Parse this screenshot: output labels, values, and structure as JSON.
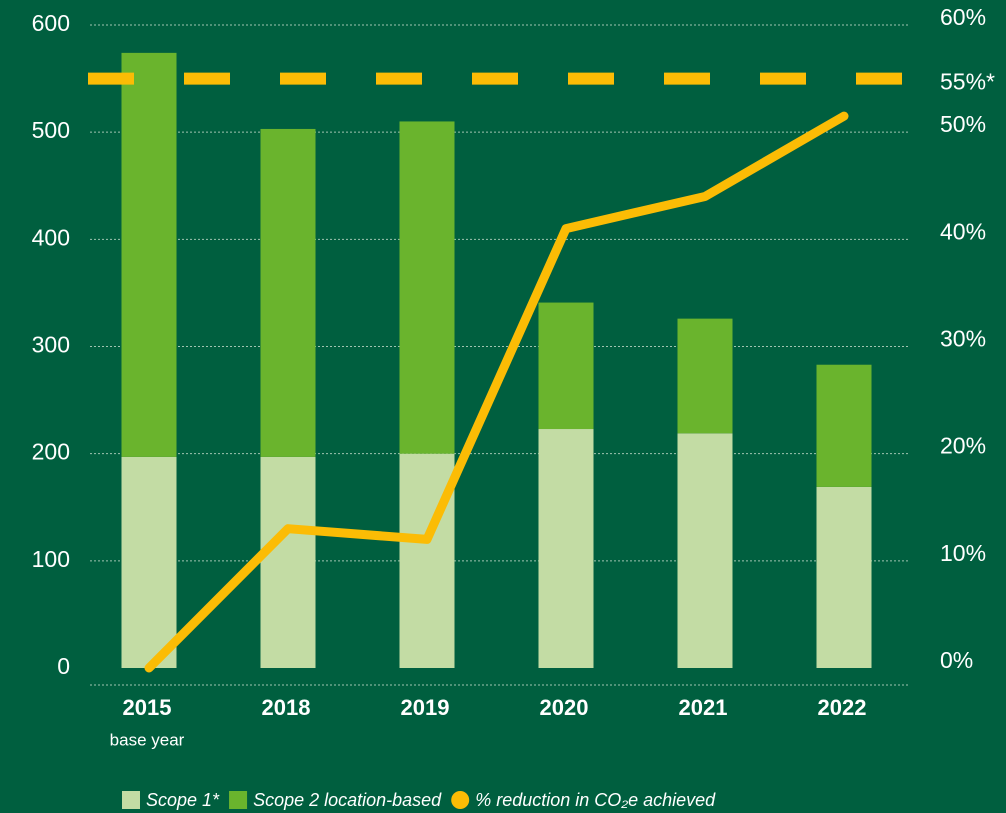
{
  "chart_data": {
    "type": "bar",
    "categories": [
      "2015",
      "2018",
      "2019",
      "2020",
      "2021",
      "2022"
    ],
    "category_sublabels": [
      "base year",
      null,
      null,
      null,
      null,
      null
    ],
    "stacked": true,
    "series": [
      {
        "name": "Scope 1*",
        "color": "#c3dca4",
        "values": [
          197,
          197,
          200,
          223,
          219,
          169
        ]
      },
      {
        "name": "Scope 2 location-based",
        "color": "#6ab42d",
        "values": [
          377,
          306,
          310,
          118,
          107,
          114
        ]
      },
      {
        "name": "% reduction in CO₂e achieved",
        "color": "#fbbc05",
        "type": "line",
        "axis": "y2",
        "values": [
          0,
          13,
          12,
          41,
          44,
          51.5
        ]
      }
    ],
    "target": {
      "value": 55,
      "label": "55%*",
      "color": "#fbbc05"
    },
    "ylim": [
      0,
      600
    ],
    "yticks": [
      0,
      100,
      200,
      300,
      400,
      500,
      600
    ],
    "y2lim": [
      0,
      60
    ],
    "y2ticks": [
      {
        "value": 0,
        "label": "0%"
      },
      {
        "value": 10,
        "label": "10%"
      },
      {
        "value": 20,
        "label": "20%"
      },
      {
        "value": 30,
        "label": "30%"
      },
      {
        "value": 40,
        "label": "40%"
      },
      {
        "value": 50,
        "label": "50%"
      },
      {
        "value": 60,
        "label": "60%"
      }
    ],
    "grid": true
  }
}
